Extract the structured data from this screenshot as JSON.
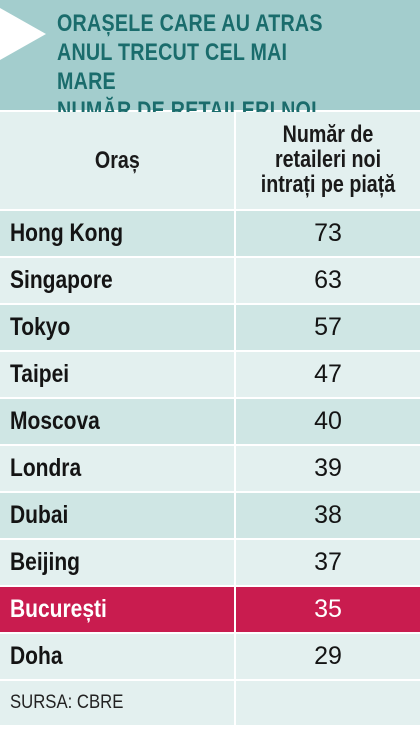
{
  "title": "ORAȘELE CARE AU ATRAS\nANUL TRECUT CEL MAI MARE\nNUMĂR DE RETAILERI NOI",
  "colors": {
    "header_band": "#a3cdcd",
    "title_text": "#1a6c6c",
    "row_dark": "#cfe6e4",
    "row_light": "#e3f0ef",
    "highlight": "#c91c4f",
    "arrow": "#ffffff"
  },
  "chart_data": {
    "type": "table",
    "columns": [
      "Oraș",
      "Număr de retaileri noi intrați pe piață"
    ],
    "rows": [
      {
        "city": "Hong Kong",
        "value": "73"
      },
      {
        "city": "Singapore",
        "value": "63"
      },
      {
        "city": "Tokyo",
        "value": "57"
      },
      {
        "city": "Taipei",
        "value": "47"
      },
      {
        "city": "Moscova",
        "value": "40"
      },
      {
        "city": "Londra",
        "value": "39"
      },
      {
        "city": "Dubai",
        "value": "38"
      },
      {
        "city": "Beijing",
        "value": "37"
      },
      {
        "city": "București",
        "value": "35"
      },
      {
        "city": "Doha",
        "value": "29"
      }
    ],
    "highlighted_row": "București"
  },
  "source": "SURSA: CBRE"
}
